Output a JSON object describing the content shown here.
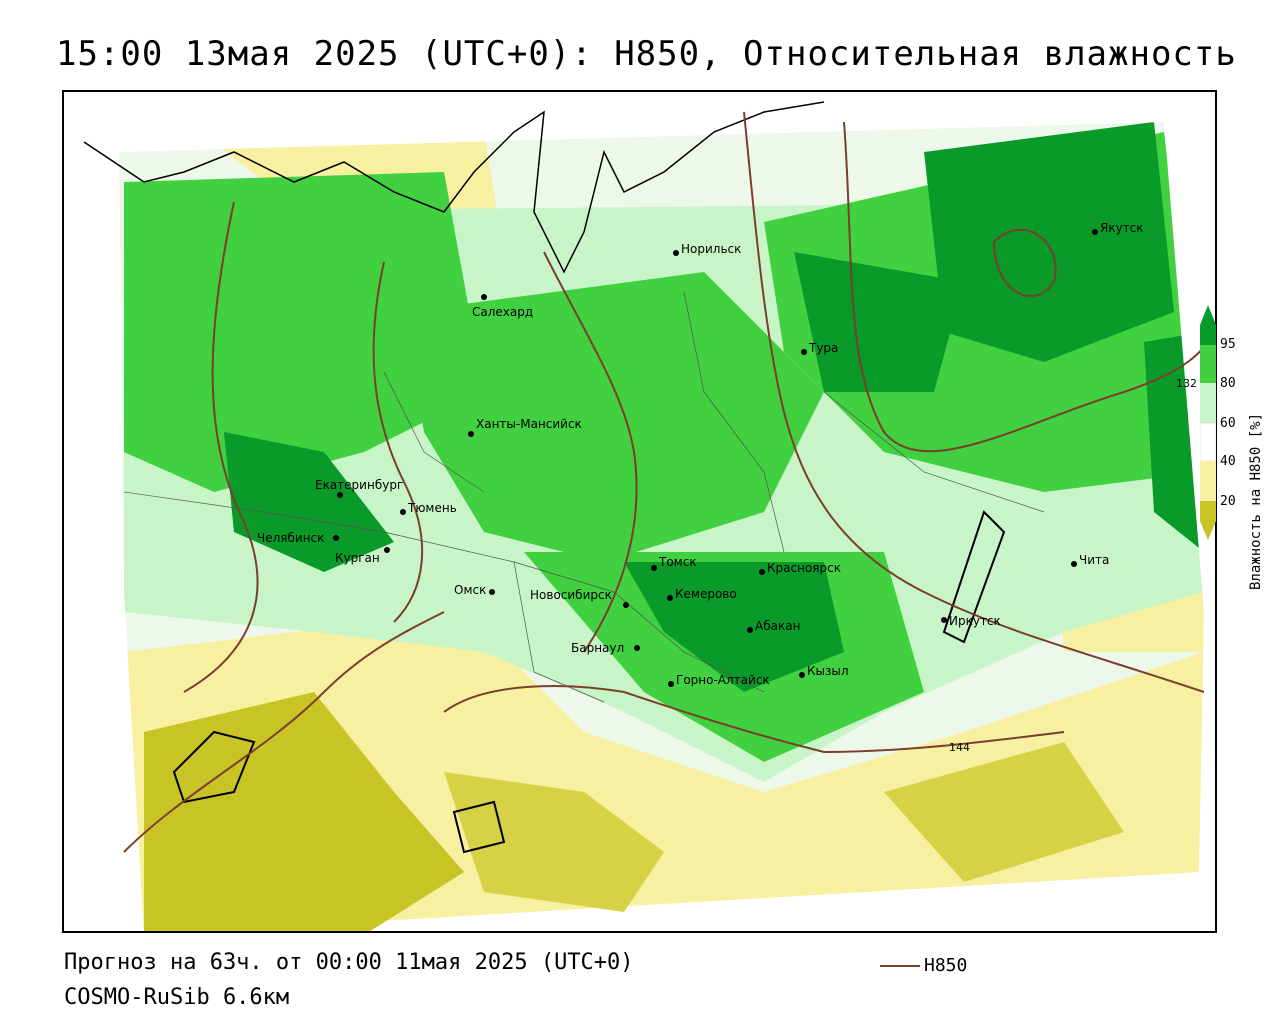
{
  "title": "15:00 13мая 2025 (UTC+0): H850, Относительная влажность",
  "footer": {
    "forecast": "Прогноз на 63ч. от 00:00 11мая 2025 (UTC+0)",
    "model": "COSMO-RuSib 6.6км",
    "line_legend": "H850"
  },
  "legend": {
    "title": "Влажность на H850 [%]",
    "ticks": [
      "95",
      "80",
      "60",
      "40",
      "20"
    ],
    "colors": {
      "very_dry": "#c8c426",
      "dry": "#f7f0a0",
      "moderate": "#ffffff",
      "moist": "#c8f5c8",
      "wet": "#40d040",
      "very_wet": "#0a9a2a",
      "contour": "#7a3f2e"
    }
  },
  "contour_labels": [
    "132",
    "144"
  ],
  "cities": [
    {
      "name": "Якутск"
    },
    {
      "name": "Норильск"
    },
    {
      "name": "Салехард"
    },
    {
      "name": "Тура"
    },
    {
      "name": "Ханты-Мансийск"
    },
    {
      "name": "Екатеринбург"
    },
    {
      "name": "Тюмень"
    },
    {
      "name": "Челябинск"
    },
    {
      "name": "Курган"
    },
    {
      "name": "Омск"
    },
    {
      "name": "Новосибирск"
    },
    {
      "name": "Томск"
    },
    {
      "name": "Красноярск"
    },
    {
      "name": "Кемерово"
    },
    {
      "name": "Абакан"
    },
    {
      "name": "Барнаул"
    },
    {
      "name": "Кызыл"
    },
    {
      "name": "Горно-Алтайск"
    },
    {
      "name": "Иркутск"
    },
    {
      "name": "Чита"
    }
  ]
}
